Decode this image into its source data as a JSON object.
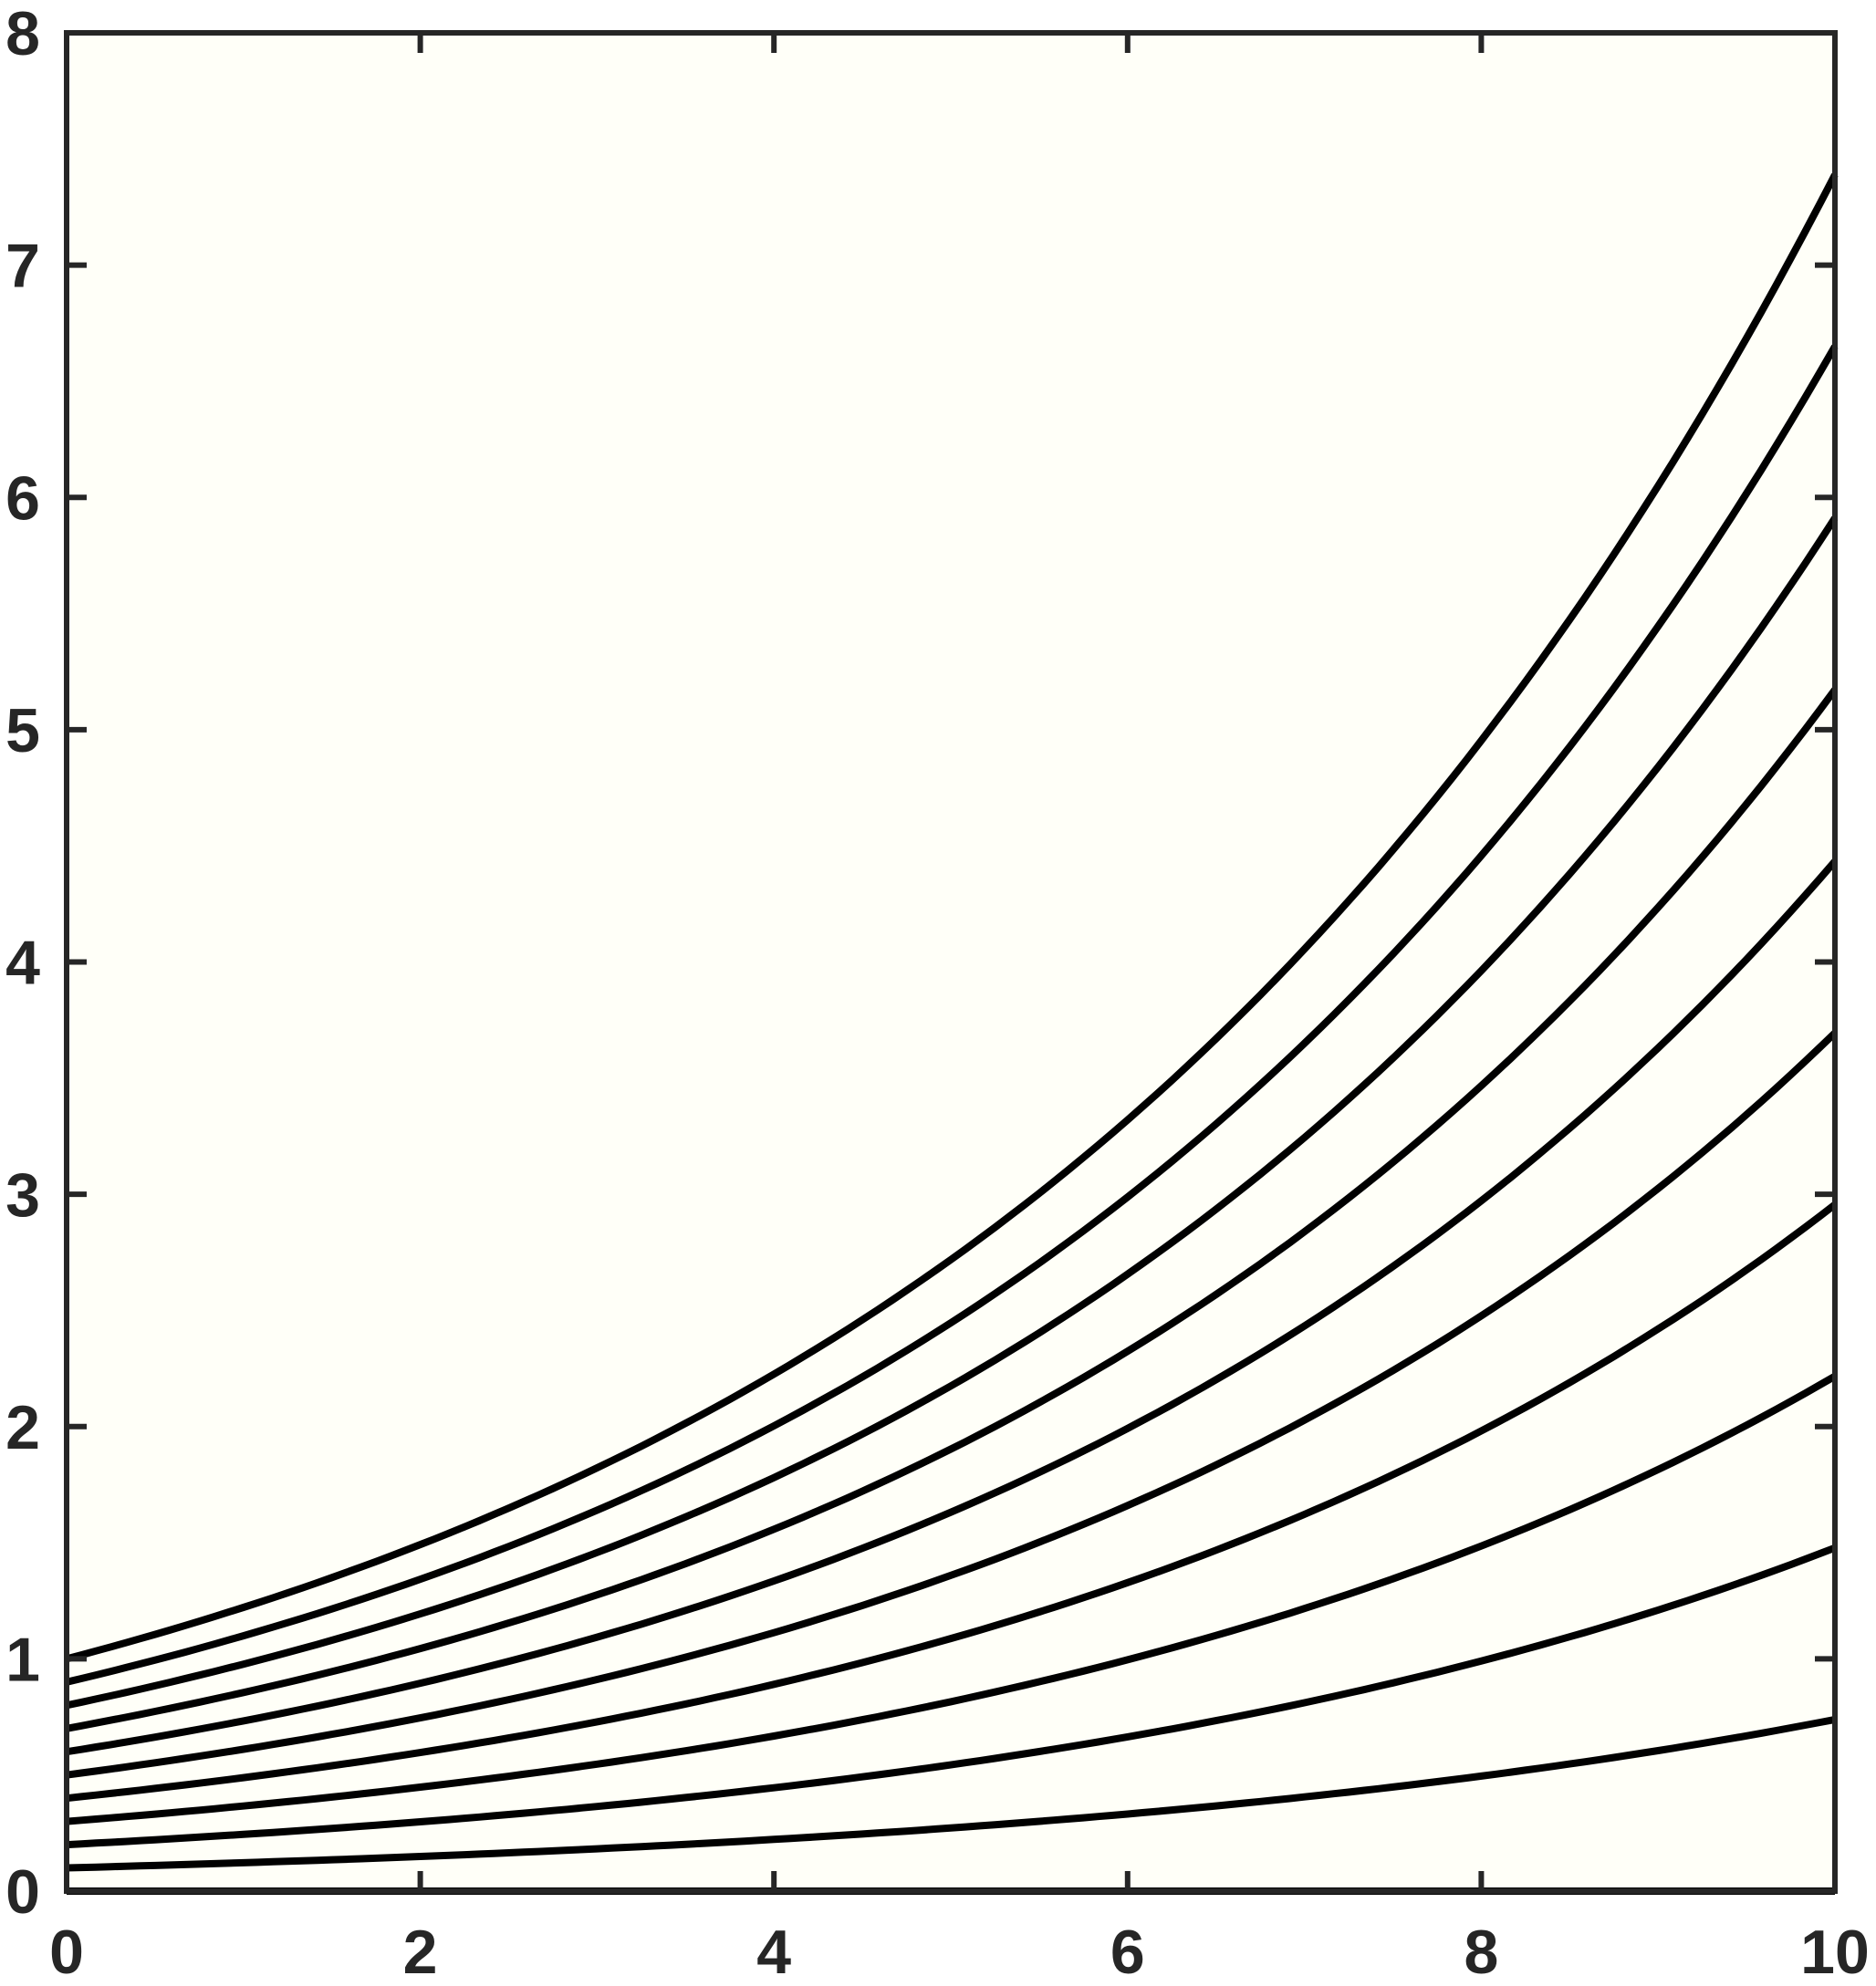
{
  "chart_data": {
    "type": "line",
    "title": "",
    "xlabel": "",
    "ylabel": "",
    "xlim": [
      0,
      10
    ],
    "ylim": [
      0,
      8
    ],
    "x_ticks": [
      0,
      2,
      4,
      6,
      8,
      10
    ],
    "y_ticks": [
      0,
      1,
      2,
      3,
      4,
      5,
      6,
      7,
      8
    ],
    "x_tick_labels": [
      "0",
      "2",
      "4",
      "6",
      "8",
      "10"
    ],
    "y_tick_labels": [
      "0",
      "1",
      "2",
      "3",
      "4",
      "5",
      "6",
      "7",
      "8"
    ],
    "grid": false,
    "legend": "none",
    "colors": {
      "background": "#fffff8",
      "line": "#000000",
      "axis": "#262626"
    },
    "x": [
      0,
      1,
      2,
      3,
      4,
      5,
      6,
      7,
      8,
      9,
      10
    ],
    "series": [
      {
        "values": [
          0,
          0,
          0,
          0,
          0,
          0,
          0,
          0,
          0,
          0,
          0
        ]
      },
      {
        "values": [
          0.1,
          0.122,
          0.149,
          0.182,
          0.222,
          0.272,
          0.332,
          0.405,
          0.495,
          0.605,
          0.739
        ]
      },
      {
        "values": [
          0.2,
          0.244,
          0.298,
          0.364,
          0.445,
          0.544,
          0.664,
          0.811,
          0.991,
          1.21,
          1.478
        ]
      },
      {
        "values": [
          0.3,
          0.366,
          0.448,
          0.547,
          0.668,
          0.815,
          0.996,
          1.216,
          1.486,
          1.815,
          2.217
        ]
      },
      {
        "values": [
          0.4,
          0.489,
          0.597,
          0.729,
          0.89,
          1.087,
          1.328,
          1.622,
          1.981,
          2.42,
          2.956
        ]
      },
      {
        "values": [
          0.5,
          0.611,
          0.746,
          0.911,
          1.113,
          1.359,
          1.66,
          2.028,
          2.477,
          3.025,
          3.695
        ]
      },
      {
        "values": [
          0.6,
          0.733,
          0.895,
          1.093,
          1.335,
          1.631,
          1.992,
          2.433,
          2.972,
          3.63,
          4.434
        ]
      },
      {
        "values": [
          0.7,
          0.855,
          1.044,
          1.275,
          1.558,
          1.903,
          2.324,
          2.839,
          3.467,
          4.235,
          5.172
        ]
      },
      {
        "values": [
          0.8,
          0.977,
          1.193,
          1.458,
          1.78,
          2.175,
          2.656,
          3.244,
          3.962,
          4.84,
          5.911
        ]
      },
      {
        "values": [
          0.9,
          1.099,
          1.343,
          1.64,
          2.003,
          2.446,
          2.988,
          3.65,
          4.458,
          5.444,
          6.65
        ]
      },
      {
        "values": [
          1.0,
          1.221,
          1.492,
          1.822,
          2.226,
          2.718,
          3.32,
          4.055,
          4.953,
          6.049,
          7.389
        ]
      }
    ]
  }
}
